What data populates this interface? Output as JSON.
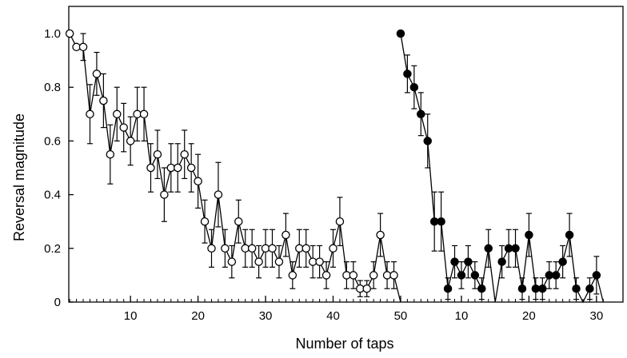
{
  "chart_data": {
    "type": "scatter",
    "xlabel": "Number of taps",
    "ylabel": "Reversal magnitude",
    "ylim": [
      0,
      1.08
    ],
    "y_ticks": [
      "0",
      "0.2",
      "0.4",
      "0.6",
      "0.8",
      "1.0"
    ],
    "x_tick_labels": [
      {
        "tap": 10,
        "label": "10"
      },
      {
        "tap": 20,
        "label": "20"
      },
      {
        "tap": 30,
        "label": "30"
      },
      {
        "tap": 40,
        "label": "40"
      },
      {
        "tap": 50,
        "label": "50"
      },
      {
        "tap": 59,
        "label": "10"
      },
      {
        "tap": 69,
        "label": "20"
      },
      {
        "tap": 79,
        "label": "30"
      }
    ],
    "grid": false,
    "series": [
      {
        "marker": "open-circle",
        "x": [
          1,
          2,
          3,
          4,
          5,
          6,
          7,
          8,
          9,
          10,
          11,
          12,
          13,
          14,
          15,
          16,
          17,
          18,
          19,
          20,
          21,
          22,
          23,
          24,
          25,
          26,
          27,
          28,
          29,
          30,
          31,
          32,
          33,
          34,
          35,
          36,
          37,
          38,
          39,
          40,
          41,
          42,
          43,
          44,
          45,
          46,
          47,
          48,
          49,
          50
        ],
        "y": [
          1.0,
          0.95,
          0.95,
          0.7,
          0.85,
          0.75,
          0.55,
          0.7,
          0.65,
          0.6,
          0.7,
          0.7,
          0.5,
          0.55,
          0.4,
          0.5,
          0.5,
          0.55,
          0.5,
          0.45,
          0.3,
          0.2,
          0.4,
          0.2,
          0.15,
          0.3,
          0.2,
          0.2,
          0.15,
          0.2,
          0.2,
          0.15,
          0.25,
          0.1,
          0.2,
          0.2,
          0.15,
          0.15,
          0.1,
          0.2,
          0.3,
          0.1,
          0.1,
          0.05,
          0.05,
          0.1,
          0.25,
          0.1,
          0.1,
          0.0
        ],
        "error": [
          0,
          0,
          0.05,
          0.11,
          0.08,
          0.1,
          0.11,
          0.1,
          0.09,
          0.09,
          0.1,
          0.1,
          0.09,
          0.09,
          0.1,
          0.09,
          0.09,
          0.09,
          0.09,
          0.1,
          0.08,
          0.07,
          0.12,
          0.07,
          0.06,
          0.08,
          0.07,
          0.07,
          0.06,
          0.07,
          0.07,
          0.06,
          0.08,
          0.05,
          0.07,
          0.07,
          0.06,
          0.06,
          0.05,
          0.07,
          0.09,
          0.05,
          0.05,
          0.03,
          0.03,
          0.05,
          0.08,
          0.05,
          0.05,
          0
        ]
      },
      {
        "marker": "filled-circle",
        "x": [
          50,
          51,
          52,
          53,
          54,
          55,
          56,
          57,
          58,
          59,
          60,
          61,
          62,
          63,
          64,
          65,
          66,
          67,
          68,
          69,
          70,
          71,
          72,
          73,
          74,
          75,
          76,
          77,
          78,
          79,
          80
        ],
        "y": [
          1.0,
          0.85,
          0.8,
          0.7,
          0.6,
          0.3,
          0.3,
          0.05,
          0.15,
          0.1,
          0.15,
          0.1,
          0.05,
          0.2,
          0.0,
          0.15,
          0.2,
          0.2,
          0.05,
          0.25,
          0.05,
          0.05,
          0.1,
          0.1,
          0.15,
          0.25,
          0.05,
          0.0,
          0.05,
          0.1,
          0.0
        ],
        "error": [
          0,
          0.07,
          0.08,
          0.08,
          0.1,
          0.11,
          0.11,
          0.04,
          0.06,
          0.05,
          0.06,
          0.05,
          0.04,
          0.07,
          0,
          0.06,
          0.07,
          0.07,
          0.04,
          0.08,
          0.04,
          0.04,
          0.05,
          0.05,
          0.06,
          0.08,
          0.04,
          0,
          0.04,
          0.07,
          0
        ]
      }
    ]
  }
}
